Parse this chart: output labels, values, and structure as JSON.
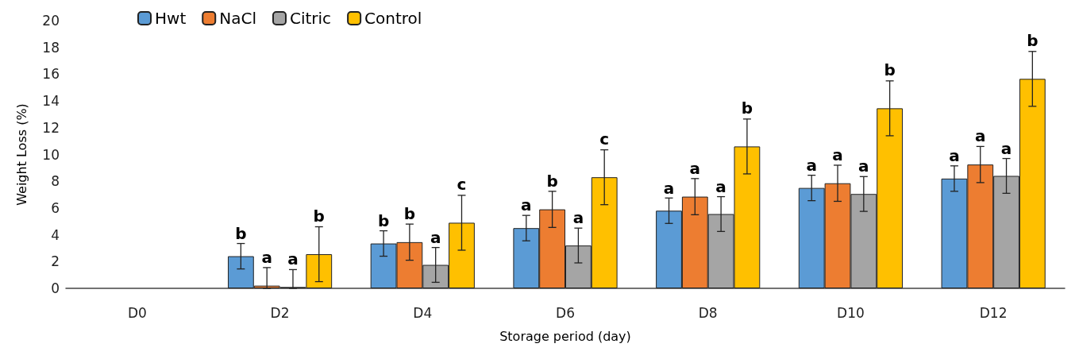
{
  "chart_data": {
    "type": "bar",
    "xlabel": "Storage period (day)",
    "ylabel": "Weight Loss (%)",
    "categories": [
      "D0",
      "D2",
      "D4",
      "D6",
      "D8",
      "D10",
      "D12"
    ],
    "ylim": [
      0,
      20
    ],
    "yticks": [
      0,
      2,
      4,
      6,
      8,
      10,
      12,
      14,
      16,
      18,
      20
    ],
    "grid": false,
    "legend": "top left",
    "series": [
      {
        "name": "Hwt",
        "color": "#5b9bd5",
        "values": [
          0,
          2.4,
          3.35,
          4.5,
          5.8,
          7.5,
          8.2
        ],
        "errors": [
          null,
          0.95,
          0.95,
          0.95,
          0.95,
          0.95,
          0.95
        ],
        "value_labels": [
          null,
          "b",
          "b",
          "a",
          "a",
          "a",
          "a"
        ]
      },
      {
        "name": "NaCl",
        "color": "#ed7d31",
        "values": [
          0,
          0.2,
          3.45,
          5.9,
          6.85,
          7.85,
          9.25
        ],
        "errors": [
          null,
          [
            0,
            1.55
          ],
          1.35,
          1.35,
          1.35,
          1.35,
          1.35
        ],
        "value_labels": [
          null,
          "a",
          "b",
          "b",
          "a",
          "a",
          "a"
        ]
      },
      {
        "name": "Citric",
        "color": "#a5a5a5",
        "values": [
          0,
          0.1,
          1.75,
          3.2,
          5.55,
          7.05,
          8.4
        ],
        "errors": [
          null,
          [
            0,
            1.4
          ],
          1.3,
          1.3,
          1.3,
          1.3,
          1.3
        ],
        "value_labels": [
          null,
          "a",
          "a",
          "a",
          "a",
          "a",
          "a"
        ]
      },
      {
        "name": "Control",
        "color": "#ffc000",
        "values": [
          0,
          2.55,
          4.9,
          8.3,
          10.6,
          13.45,
          15.65
        ],
        "errors": [
          null,
          2.05,
          2.05,
          2.05,
          2.05,
          2.05,
          2.05
        ],
        "value_labels": [
          null,
          "b",
          "c",
          "c",
          "b",
          "b",
          "b"
        ]
      }
    ]
  }
}
